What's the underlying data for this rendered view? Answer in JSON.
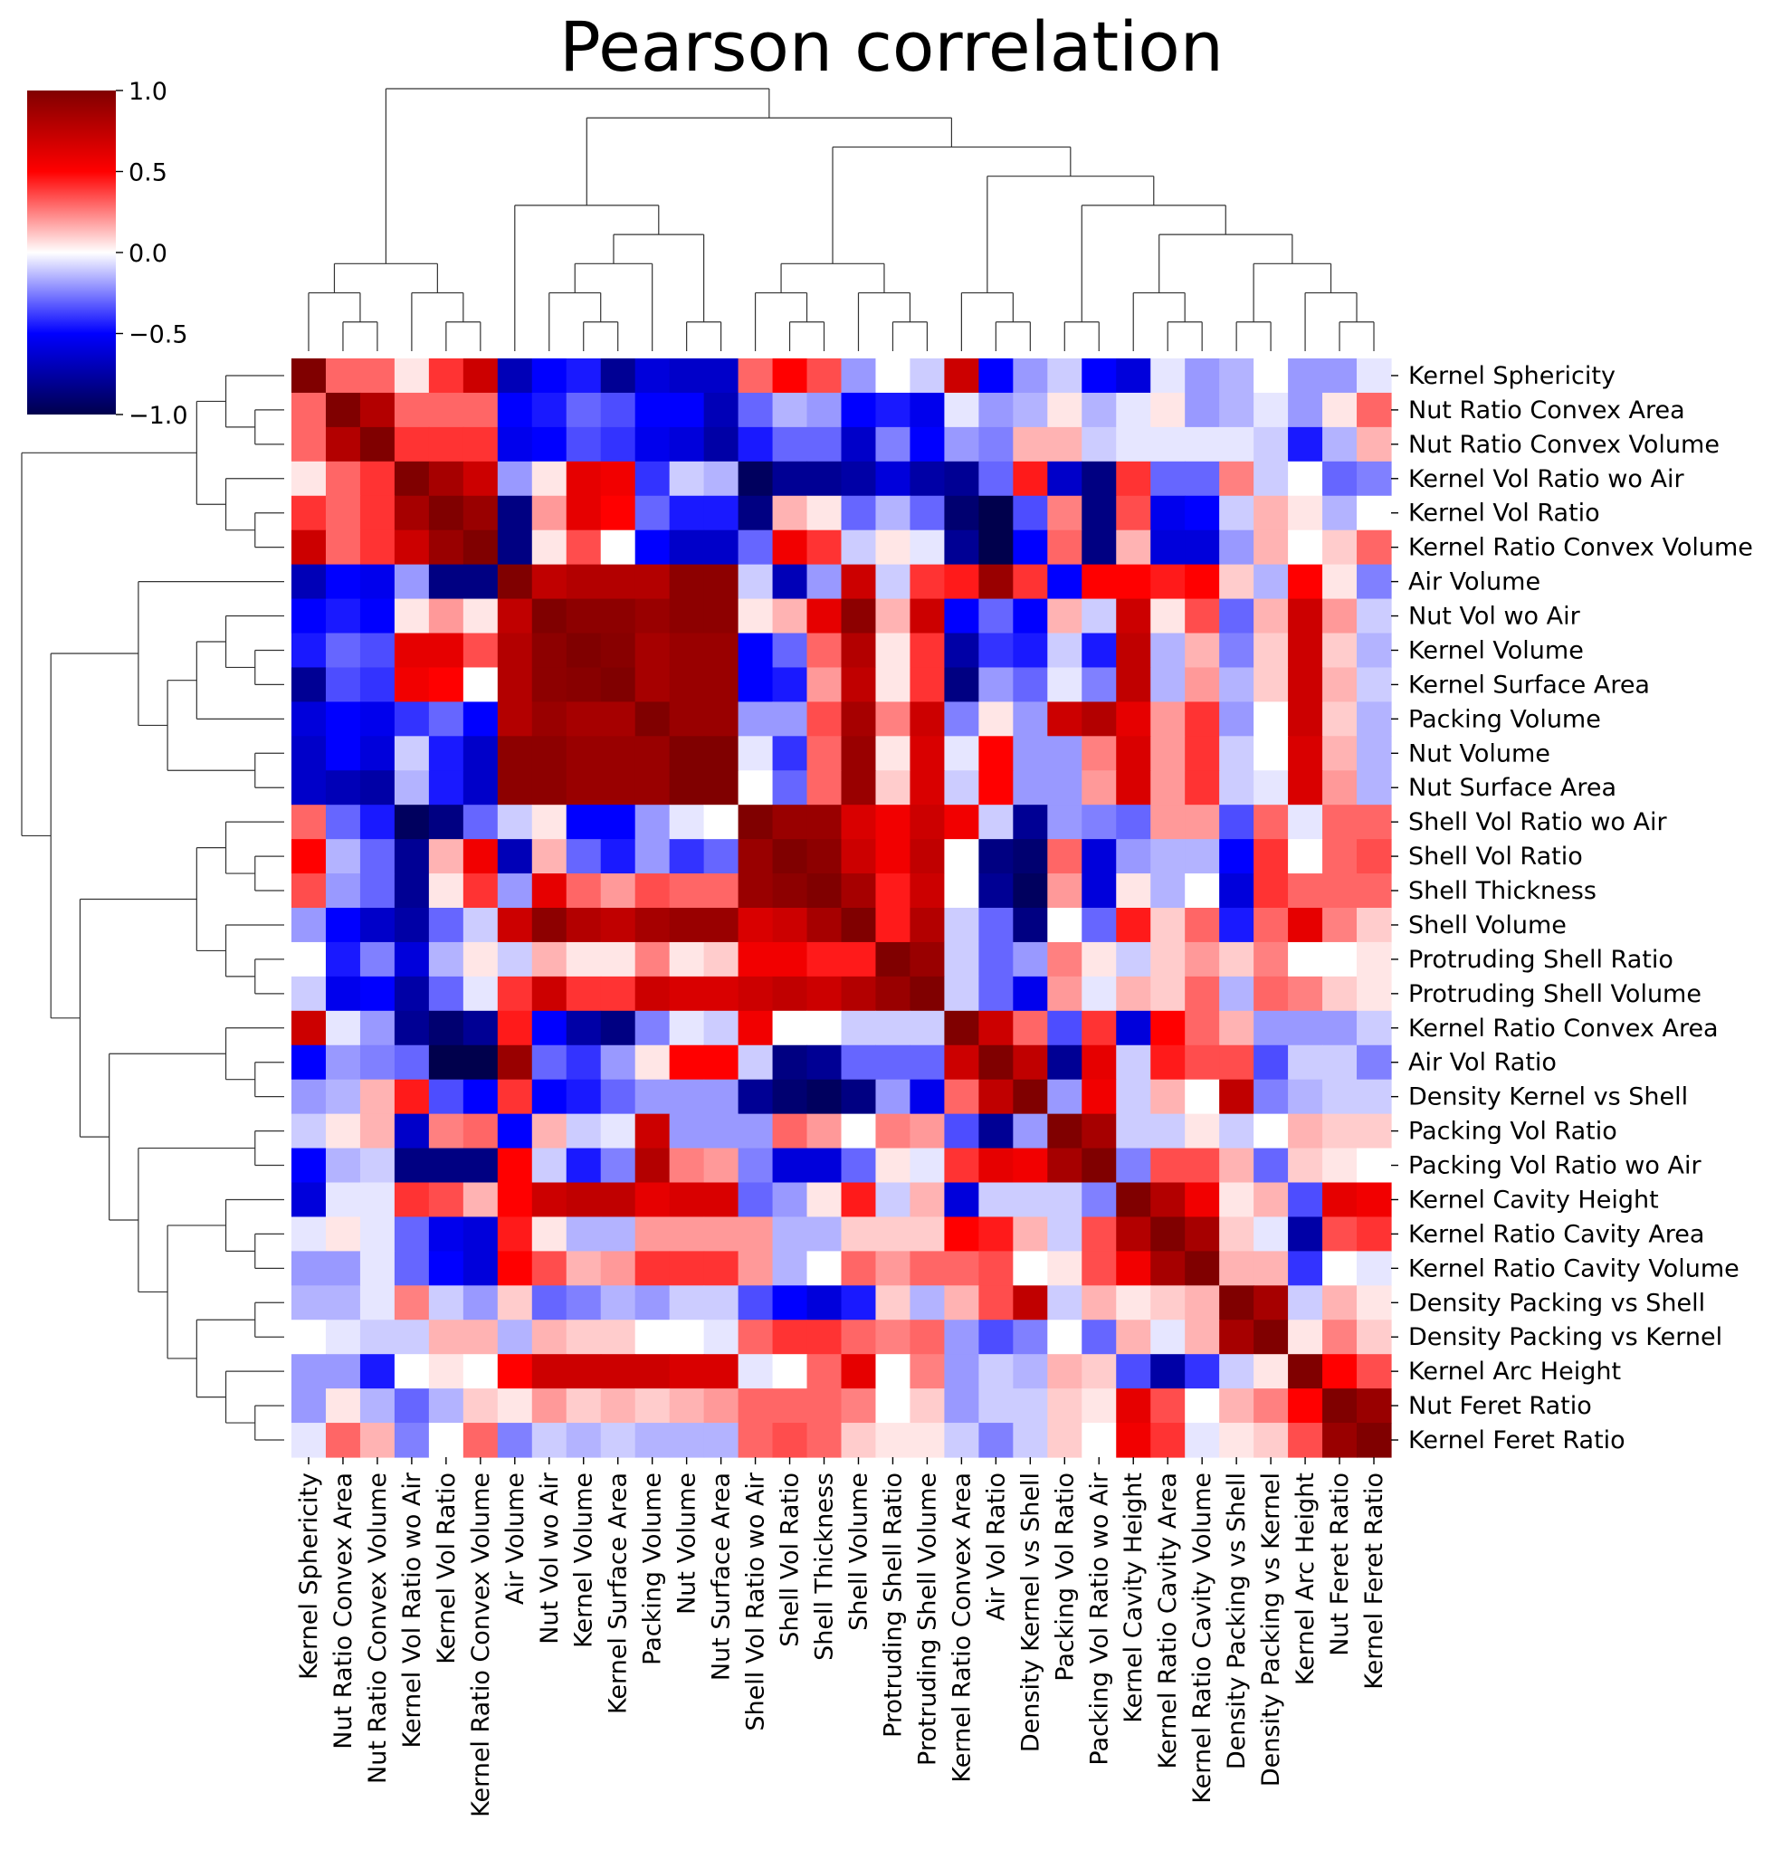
{
  "chart_data": {
    "type": "heatmap",
    "title": "Pearson correlation",
    "labels": [
      "Kernel Sphericity",
      "Nut Ratio Convex Area",
      "Nut Ratio Convex Volume",
      "Kernel Vol Ratio wo Air",
      "Kernel Vol Ratio",
      "Kernel Ratio Convex Volume",
      "Air Volume",
      "Nut Vol wo Air",
      "Kernel Volume",
      "Kernel Surface Area",
      "Packing Volume",
      "Nut Volume",
      "Nut Surface Area",
      "Shell Vol Ratio wo Air",
      "Shell Vol Ratio",
      "Shell Thickness",
      "Shell Volume",
      "Protruding Shell Ratio",
      "Protruding Shell Volume",
      "Kernel Ratio Convex Area",
      "Air Vol Ratio",
      "Density Kernel vs Shell",
      "Packing Vol Ratio",
      "Packing Vol Ratio wo Air",
      "Kernel Cavity Height",
      "Kernel Ratio Cavity Area",
      "Kernel Ratio Cavity Volume",
      "Density Packing vs Shell",
      "Density Packing vs Kernel",
      "Kernel Arc Height",
      "Nut Feret Ratio",
      "Kernel Feret Ratio"
    ],
    "matrix": [
      [
        1.0,
        0.3,
        0.3,
        0.05,
        0.4,
        0.7,
        -0.7,
        -0.5,
        -0.45,
        -0.8,
        -0.6,
        -0.65,
        -0.65,
        0.3,
        0.5,
        0.35,
        -0.2,
        0,
        -0.1,
        0.7,
        -0.5,
        -0.2,
        -0.1,
        -0.5,
        -0.6,
        -0.05,
        -0.2,
        -0.15,
        0,
        -0.2,
        -0.2,
        -0.05
      ],
      [
        0.3,
        1.0,
        0.8,
        0.3,
        0.3,
        0.3,
        -0.5,
        -0.45,
        -0.3,
        -0.35,
        -0.5,
        -0.5,
        -0.7,
        -0.3,
        -0.15,
        -0.2,
        -0.5,
        -0.45,
        -0.55,
        -0.05,
        -0.2,
        -0.15,
        0.05,
        -0.15,
        -0.05,
        0.05,
        -0.2,
        -0.15,
        -0.05,
        -0.2,
        0.05,
        0.3
      ],
      [
        0.3,
        0.8,
        1.0,
        0.4,
        0.4,
        0.4,
        -0.55,
        -0.5,
        -0.35,
        -0.4,
        -0.55,
        -0.6,
        -0.75,
        -0.45,
        -0.3,
        -0.3,
        -0.65,
        -0.25,
        -0.5,
        -0.2,
        -0.25,
        0.15,
        0.15,
        -0.1,
        -0.05,
        -0.05,
        -0.05,
        -0.05,
        -0.1,
        -0.45,
        -0.15,
        0.15
      ],
      [
        0.05,
        0.3,
        0.4,
        1.0,
        0.85,
        0.7,
        -0.2,
        0.05,
        0.6,
        0.55,
        -0.4,
        -0.1,
        -0.15,
        -0.95,
        -0.8,
        -0.8,
        -0.75,
        -0.6,
        -0.75,
        -0.8,
        -0.3,
        0.45,
        -0.65,
        -0.85,
        0.4,
        -0.3,
        -0.3,
        0.25,
        -0.1,
        0,
        -0.3,
        -0.25
      ],
      [
        0.4,
        0.3,
        0.4,
        0.85,
        1.0,
        0.9,
        -0.85,
        0.2,
        0.6,
        0.5,
        -0.3,
        -0.45,
        -0.45,
        -0.85,
        0.15,
        0.05,
        -0.3,
        -0.15,
        -0.3,
        -0.9,
        -1.0,
        -0.35,
        0.25,
        -0.85,
        0.35,
        -0.55,
        -0.5,
        -0.1,
        0.15,
        0.05,
        -0.15,
        0
      ],
      [
        0.7,
        0.3,
        0.4,
        0.7,
        0.9,
        1.0,
        -0.85,
        0.05,
        0.35,
        0,
        -0.5,
        -0.65,
        -0.65,
        -0.3,
        0.55,
        0.4,
        -0.1,
        0.05,
        -0.05,
        -0.8,
        -1.0,
        -0.5,
        0.3,
        -0.85,
        0.15,
        -0.6,
        -0.6,
        -0.2,
        0.15,
        0,
        0.1,
        0.3
      ],
      [
        -0.7,
        -0.5,
        -0.55,
        -0.2,
        -0.85,
        -0.85,
        1.0,
        0.75,
        0.8,
        0.8,
        0.8,
        0.95,
        0.95,
        -0.1,
        -0.7,
        -0.2,
        0.7,
        -0.1,
        0.4,
        0.45,
        0.9,
        0.4,
        -0.5,
        0.5,
        0.5,
        0.45,
        0.5,
        0.1,
        -0.15,
        0.5,
        0.05,
        -0.25
      ],
      [
        -0.5,
        -0.45,
        -0.5,
        0.05,
        0.2,
        0.05,
        0.75,
        1.0,
        0.95,
        0.95,
        0.9,
        0.95,
        0.95,
        0.05,
        0.15,
        0.6,
        0.95,
        0.15,
        0.7,
        -0.5,
        -0.3,
        -0.5,
        0.15,
        -0.1,
        0.7,
        0.05,
        0.35,
        -0.3,
        0.15,
        0.7,
        0.2,
        -0.1
      ],
      [
        -0.45,
        -0.3,
        -0.35,
        0.6,
        0.6,
        0.35,
        0.8,
        0.95,
        1.0,
        0.97,
        0.85,
        0.9,
        0.9,
        -0.5,
        -0.3,
        0.3,
        0.8,
        0.05,
        0.4,
        -0.75,
        -0.4,
        -0.45,
        -0.1,
        -0.45,
        0.75,
        -0.15,
        0.15,
        -0.25,
        0.1,
        0.7,
        0.1,
        -0.15
      ],
      [
        -0.8,
        -0.35,
        -0.4,
        0.55,
        0.5,
        0,
        0.8,
        0.95,
        0.97,
        1.0,
        0.85,
        0.9,
        0.9,
        -0.5,
        -0.45,
        0.2,
        0.75,
        0.05,
        0.4,
        -0.85,
        -0.2,
        -0.3,
        -0.05,
        -0.25,
        0.75,
        -0.15,
        0.2,
        -0.15,
        0.1,
        0.7,
        0.15,
        -0.1
      ],
      [
        -0.6,
        -0.5,
        -0.55,
        -0.4,
        -0.3,
        -0.5,
        0.8,
        0.9,
        0.85,
        0.85,
        1.0,
        0.9,
        0.9,
        -0.2,
        -0.2,
        0.35,
        0.85,
        0.25,
        0.7,
        -0.25,
        0.05,
        -0.2,
        0.7,
        0.8,
        0.6,
        0.2,
        0.4,
        -0.2,
        0,
        0.7,
        0.1,
        -0.15
      ],
      [
        -0.65,
        -0.5,
        -0.6,
        -0.1,
        -0.45,
        -0.65,
        0.95,
        0.95,
        0.9,
        0.9,
        0.9,
        1.0,
        1.0,
        -0.05,
        -0.4,
        0.3,
        0.9,
        0.05,
        0.65,
        -0.05,
        0.5,
        -0.2,
        -0.2,
        0.25,
        0.65,
        0.2,
        0.4,
        -0.1,
        0,
        0.65,
        0.15,
        -0.15
      ],
      [
        -0.65,
        -0.7,
        -0.75,
        -0.15,
        -0.45,
        -0.65,
        0.95,
        0.95,
        0.9,
        0.9,
        0.9,
        1.0,
        1.0,
        0,
        -0.3,
        0.3,
        0.9,
        0.1,
        0.65,
        -0.1,
        0.5,
        -0.2,
        -0.2,
        0.2,
        0.65,
        0.2,
        0.4,
        -0.1,
        -0.05,
        0.65,
        0.2,
        -0.15
      ],
      [
        0.3,
        -0.3,
        -0.45,
        -0.95,
        -0.85,
        -0.3,
        -0.1,
        0.05,
        -0.5,
        -0.5,
        -0.2,
        -0.05,
        0,
        1.0,
        0.9,
        0.9,
        0.65,
        0.55,
        0.7,
        0.55,
        -0.1,
        -0.8,
        -0.2,
        -0.25,
        -0.3,
        0.2,
        0.2,
        -0.35,
        0.3,
        -0.05,
        0.3,
        0.3
      ],
      [
        0.5,
        -0.15,
        -0.3,
        -0.8,
        0.15,
        0.55,
        -0.7,
        0.15,
        -0.3,
        -0.45,
        -0.2,
        -0.4,
        -0.3,
        0.9,
        1.0,
        0.95,
        0.7,
        0.55,
        0.75,
        0,
        -0.85,
        -0.9,
        0.3,
        -0.6,
        -0.2,
        -0.15,
        -0.15,
        -0.5,
        0.4,
        0,
        0.3,
        0.35
      ],
      [
        0.35,
        -0.2,
        -0.3,
        -0.8,
        0.05,
        0.4,
        -0.2,
        0.6,
        0.3,
        0.2,
        0.35,
        0.3,
        0.3,
        0.9,
        0.95,
        1.0,
        0.85,
        0.45,
        0.7,
        0,
        -0.8,
        -0.95,
        0.2,
        -0.6,
        0.05,
        -0.15,
        0,
        -0.6,
        0.4,
        0.3,
        0.3,
        0.3
      ],
      [
        -0.2,
        -0.5,
        -0.65,
        -0.75,
        -0.3,
        -0.1,
        0.7,
        0.95,
        0.8,
        0.75,
        0.85,
        0.9,
        0.9,
        0.65,
        0.7,
        0.85,
        1.0,
        0.45,
        0.8,
        -0.1,
        -0.3,
        -0.85,
        0,
        -0.3,
        0.45,
        0.1,
        0.3,
        -0.45,
        0.3,
        0.6,
        0.25,
        0.1
      ],
      [
        0,
        -0.45,
        -0.25,
        -0.6,
        -0.15,
        0.05,
        -0.1,
        0.15,
        0.05,
        0.05,
        0.25,
        0.05,
        0.1,
        0.55,
        0.55,
        0.45,
        0.45,
        1.0,
        0.9,
        -0.1,
        -0.3,
        -0.2,
        0.25,
        0.05,
        -0.1,
        0.1,
        0.2,
        0.1,
        0.25,
        0,
        0,
        0.05
      ],
      [
        -0.1,
        -0.55,
        -0.5,
        -0.75,
        -0.3,
        -0.05,
        0.4,
        0.7,
        0.4,
        0.4,
        0.7,
        0.65,
        0.65,
        0.7,
        0.75,
        0.7,
        0.8,
        0.9,
        1.0,
        -0.1,
        -0.3,
        -0.55,
        0.2,
        -0.05,
        0.15,
        0.1,
        0.3,
        -0.15,
        0.3,
        0.25,
        0.1,
        0.05
      ],
      [
        0.7,
        -0.05,
        -0.2,
        -0.8,
        -0.9,
        -0.8,
        0.45,
        -0.5,
        -0.75,
        -0.85,
        -0.25,
        -0.05,
        -0.1,
        0.55,
        0,
        0,
        -0.1,
        -0.1,
        -0.1,
        1.0,
        0.7,
        0.3,
        -0.35,
        0.4,
        -0.6,
        0.5,
        0.3,
        0.15,
        -0.2,
        -0.2,
        -0.2,
        -0.1
      ],
      [
        -0.5,
        -0.2,
        -0.25,
        -0.3,
        -1.0,
        -1.0,
        0.9,
        -0.3,
        -0.4,
        -0.2,
        0.05,
        0.5,
        0.5,
        -0.1,
        -0.85,
        -0.8,
        -0.3,
        -0.3,
        -0.3,
        0.7,
        1.0,
        0.75,
        -0.8,
        0.6,
        -0.1,
        0.45,
        0.35,
        0.35,
        -0.35,
        -0.1,
        -0.1,
        -0.25
      ],
      [
        -0.2,
        -0.15,
        0.15,
        0.45,
        -0.35,
        -0.5,
        0.4,
        -0.5,
        -0.45,
        -0.3,
        -0.2,
        -0.2,
        -0.2,
        -0.8,
        -0.9,
        -0.95,
        -0.85,
        -0.2,
        -0.55,
        0.3,
        0.75,
        1.0,
        -0.2,
        0.55,
        -0.1,
        0.15,
        0,
        0.75,
        -0.25,
        -0.15,
        -0.1,
        -0.1
      ],
      [
        -0.1,
        0.05,
        0.15,
        -0.65,
        0.25,
        0.3,
        -0.5,
        0.15,
        -0.1,
        -0.05,
        0.7,
        -0.2,
        -0.2,
        -0.2,
        0.3,
        0.2,
        0,
        0.25,
        0.2,
        -0.35,
        -0.8,
        -0.2,
        1.0,
        0.85,
        -0.1,
        -0.1,
        0.05,
        -0.1,
        0,
        0.15,
        0.1,
        0.1
      ],
      [
        -0.5,
        -0.15,
        -0.1,
        -0.85,
        -0.85,
        -0.85,
        0.5,
        -0.1,
        -0.45,
        -0.25,
        0.8,
        0.25,
        0.2,
        -0.25,
        -0.6,
        -0.6,
        -0.3,
        0.05,
        -0.05,
        0.4,
        0.6,
        0.55,
        0.85,
        1.0,
        -0.25,
        0.35,
        0.35,
        0.15,
        -0.3,
        0.1,
        0.05,
        0
      ],
      [
        -0.6,
        -0.05,
        -0.05,
        0.4,
        0.35,
        0.15,
        0.5,
        0.7,
        0.75,
        0.75,
        0.6,
        0.65,
        0.65,
        -0.3,
        -0.2,
        0.05,
        0.45,
        -0.1,
        0.15,
        -0.6,
        -0.1,
        -0.1,
        -0.1,
        -0.25,
        1.0,
        0.8,
        0.55,
        0.05,
        0.15,
        -0.35,
        0.6,
        0.55
      ],
      [
        -0.05,
        0.05,
        -0.05,
        -0.3,
        -0.55,
        -0.6,
        0.45,
        0.05,
        -0.15,
        -0.15,
        0.2,
        0.2,
        0.2,
        0.2,
        -0.15,
        -0.15,
        0.1,
        0.1,
        0.1,
        0.5,
        0.45,
        0.15,
        -0.1,
        0.35,
        0.8,
        1.0,
        0.85,
        0.1,
        -0.05,
        -0.75,
        0.35,
        0.4
      ],
      [
        -0.2,
        -0.2,
        -0.05,
        -0.3,
        -0.5,
        -0.6,
        0.5,
        0.35,
        0.15,
        0.2,
        0.4,
        0.4,
        0.4,
        0.2,
        -0.15,
        0,
        0.3,
        0.2,
        0.3,
        0.3,
        0.35,
        0,
        0.05,
        0.35,
        0.55,
        0.85,
        1.0,
        0.15,
        0.15,
        -0.4,
        0,
        -0.05
      ],
      [
        -0.15,
        -0.15,
        -0.05,
        0.25,
        -0.1,
        -0.2,
        0.1,
        -0.3,
        -0.25,
        -0.15,
        -0.2,
        -0.1,
        -0.1,
        -0.35,
        -0.5,
        -0.6,
        -0.45,
        0.1,
        -0.15,
        0.15,
        0.35,
        0.75,
        -0.1,
        0.15,
        0.05,
        0.1,
        0.15,
        1.0,
        0.85,
        -0.1,
        0.15,
        0.05
      ],
      [
        0,
        -0.05,
        -0.1,
        -0.1,
        0.15,
        0.15,
        -0.15,
        0.15,
        0.1,
        0.1,
        0,
        0,
        -0.05,
        0.3,
        0.4,
        0.4,
        0.3,
        0.25,
        0.3,
        -0.2,
        -0.35,
        -0.25,
        0,
        -0.3,
        0.15,
        -0.05,
        0.15,
        0.85,
        1.0,
        0.05,
        0.25,
        0.1
      ],
      [
        -0.2,
        -0.2,
        -0.45,
        0,
        0.05,
        0,
        0.5,
        0.7,
        0.7,
        0.7,
        0.7,
        0.65,
        0.65,
        -0.05,
        0,
        0.3,
        0.6,
        0,
        0.25,
        -0.2,
        -0.1,
        -0.15,
        0.15,
        0.1,
        -0.35,
        -0.75,
        -0.4,
        -0.1,
        0.05,
        1.0,
        0.5,
        0.35
      ],
      [
        -0.2,
        0.05,
        -0.15,
        -0.3,
        -0.15,
        0.1,
        0.05,
        0.2,
        0.1,
        0.15,
        0.1,
        0.15,
        0.2,
        0.3,
        0.3,
        0.3,
        0.25,
        0,
        0.1,
        -0.2,
        -0.1,
        -0.1,
        0.1,
        0.05,
        0.6,
        0.35,
        0,
        0.15,
        0.25,
        0.5,
        1.0,
        0.9
      ],
      [
        -0.05,
        0.3,
        0.15,
        -0.25,
        0,
        0.3,
        -0.25,
        -0.1,
        -0.15,
        -0.1,
        -0.15,
        -0.15,
        -0.15,
        0.3,
        0.35,
        0.3,
        0.1,
        0.05,
        0.05,
        -0.1,
        -0.25,
        -0.1,
        0.1,
        0,
        0.55,
        0.4,
        -0.05,
        0.05,
        0.1,
        0.35,
        0.9,
        1.0
      ]
    ],
    "colorbar": {
      "min": -1.0,
      "max": 1.0,
      "ticks": [
        "1.0",
        "0.5",
        "0.0",
        "−0.5",
        "−1.0"
      ],
      "colormap": "seismic"
    },
    "dendrogram": {
      "children": [
        [
          [
            "Kernel Sphericity",
            [
              "Nut Ratio Convex Area",
              "Nut Ratio Convex Volume"
            ]
          ],
          [
            "Kernel Vol Ratio wo Air",
            [
              "Kernel Vol Ratio",
              "Kernel Ratio Convex Volume"
            ]
          ]
        ],
        [
          [
            "Air Volume",
            [
              [
                [
                  "Nut Vol wo Air",
                  [
                    "Kernel Volume",
                    "Kernel Surface Area"
                  ]
                ],
                "Packing Volume"
              ],
              [
                "Nut Volume",
                "Nut Surface Area"
              ]
            ]
          ],
          [
            [
              [
                "Shell Vol Ratio wo Air",
                [
                  "Shell Vol Ratio",
                  "Shell Thickness"
                ]
              ],
              [
                "Shell Volume",
                [
                  "Protruding Shell Ratio",
                  "Protruding Shell Volume"
                ]
              ]
            ],
            [
              [
                "Kernel Ratio Convex Area",
                [
                  "Air Vol Ratio",
                  "Density Kernel vs Shell"
                ]
              ],
              [
                [
                  "Packing Vol Ratio",
                  "Packing Vol Ratio wo Air"
                ],
                [
                  [
                    "Kernel Cavity Height",
                    [
                      "Kernel Ratio Cavity Area",
                      "Kernel Ratio Cavity Volume"
                    ]
                  ],
                  [
                    [
                      "Density Packing vs Shell",
                      "Density Packing vs Kernel"
                    ],
                    [
                      "Kernel Arc Height",
                      [
                        "Nut Feret Ratio",
                        "Kernel Feret Ratio"
                      ]
                    ]
                  ]
                ]
              ]
            ]
          ]
        ]
      ]
    }
  }
}
